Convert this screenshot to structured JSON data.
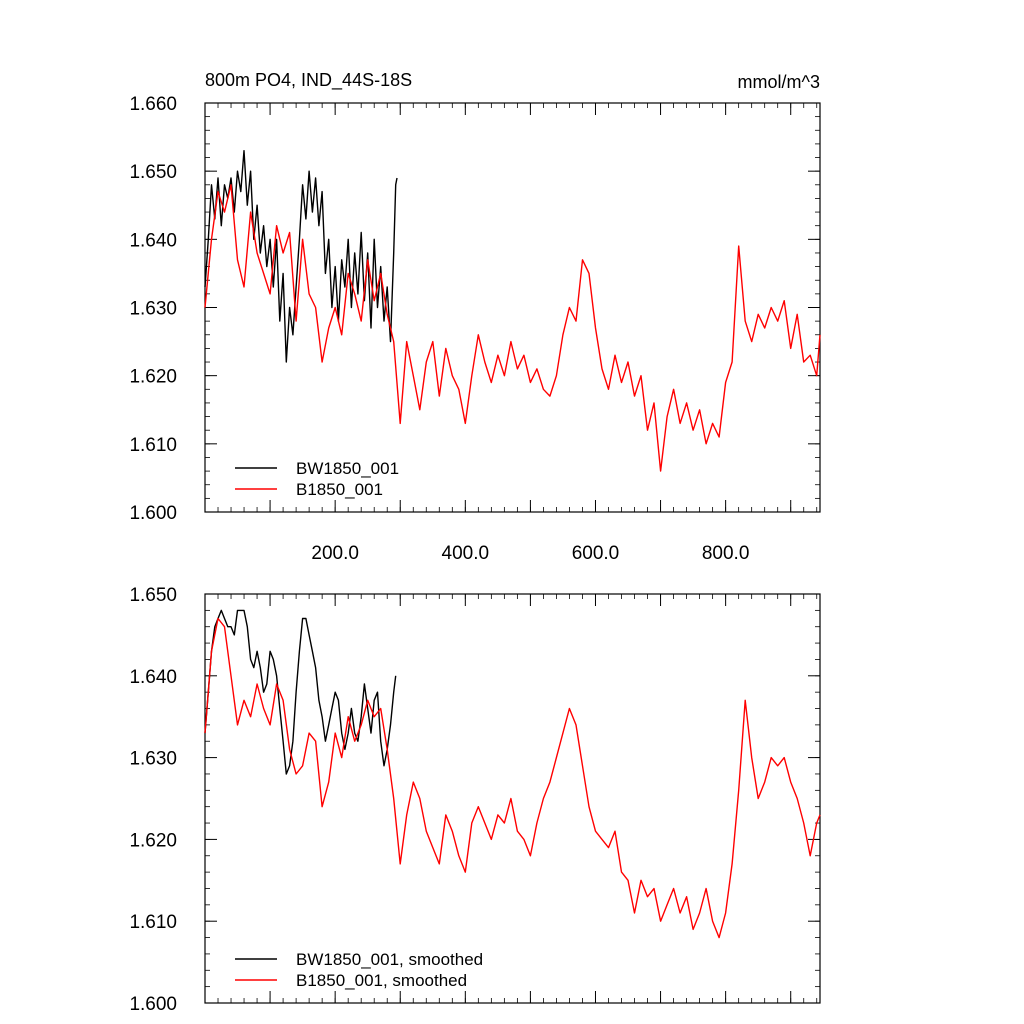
{
  "chart_data": [
    {
      "type": "line",
      "title": "800m PO4, IND_44S-18S",
      "units": "mmol/m^3",
      "xlim": [
        0,
        945
      ],
      "ylim": [
        1.6,
        1.66
      ],
      "y_ticks": [
        "1.600",
        "1.610",
        "1.620",
        "1.630",
        "1.640",
        "1.650",
        "1.660"
      ],
      "x_ticks": [
        "200.0",
        "400.0",
        "600.0",
        "800.0"
      ],
      "legend_position": "bottom-left",
      "series": [
        {
          "name": "BW1850_001",
          "color": "#000000",
          "x": [
            0,
            5,
            10,
            15,
            20,
            25,
            30,
            35,
            40,
            45,
            50,
            55,
            60,
            65,
            70,
            75,
            80,
            85,
            90,
            95,
            100,
            105,
            110,
            115,
            120,
            125,
            130,
            135,
            140,
            145,
            150,
            155,
            160,
            165,
            170,
            175,
            180,
            185,
            190,
            195,
            200,
            205,
            210,
            215,
            220,
            225,
            230,
            235,
            240,
            245,
            250,
            255,
            260,
            265,
            270,
            275,
            280,
            285,
            290,
            293,
            295
          ],
          "values": [
            1.633,
            1.64,
            1.648,
            1.643,
            1.649,
            1.642,
            1.648,
            1.646,
            1.649,
            1.644,
            1.65,
            1.647,
            1.653,
            1.645,
            1.65,
            1.64,
            1.645,
            1.638,
            1.642,
            1.636,
            1.64,
            1.633,
            1.64,
            1.628,
            1.635,
            1.622,
            1.63,
            1.626,
            1.633,
            1.64,
            1.648,
            1.643,
            1.65,
            1.644,
            1.649,
            1.642,
            1.647,
            1.635,
            1.64,
            1.63,
            1.636,
            1.628,
            1.637,
            1.633,
            1.64,
            1.63,
            1.638,
            1.632,
            1.641,
            1.631,
            1.638,
            1.627,
            1.64,
            1.63,
            1.636,
            1.628,
            1.633,
            1.625,
            1.638,
            1.648,
            1.649
          ]
        },
        {
          "name": "B1850_001",
          "color": "#ff0000",
          "x": [
            0,
            10,
            20,
            30,
            40,
            50,
            60,
            70,
            80,
            90,
            100,
            110,
            120,
            130,
            140,
            150,
            160,
            170,
            180,
            190,
            200,
            210,
            220,
            230,
            240,
            250,
            260,
            270,
            280,
            290,
            300,
            310,
            320,
            330,
            340,
            350,
            360,
            370,
            380,
            390,
            400,
            410,
            420,
            430,
            440,
            450,
            460,
            470,
            480,
            490,
            500,
            510,
            520,
            530,
            540,
            550,
            560,
            570,
            580,
            590,
            600,
            610,
            620,
            630,
            640,
            650,
            660,
            670,
            680,
            690,
            700,
            710,
            720,
            730,
            740,
            750,
            760,
            770,
            780,
            790,
            800,
            810,
            820,
            830,
            840,
            850,
            860,
            870,
            880,
            890,
            900,
            910,
            920,
            930,
            940,
            945
          ],
          "values": [
            1.63,
            1.64,
            1.647,
            1.644,
            1.648,
            1.637,
            1.633,
            1.644,
            1.638,
            1.635,
            1.632,
            1.642,
            1.638,
            1.641,
            1.628,
            1.64,
            1.632,
            1.63,
            1.622,
            1.627,
            1.63,
            1.626,
            1.635,
            1.632,
            1.628,
            1.637,
            1.631,
            1.635,
            1.629,
            1.625,
            1.613,
            1.625,
            1.62,
            1.615,
            1.622,
            1.625,
            1.617,
            1.624,
            1.62,
            1.618,
            1.613,
            1.62,
            1.626,
            1.622,
            1.619,
            1.623,
            1.62,
            1.625,
            1.621,
            1.623,
            1.619,
            1.621,
            1.618,
            1.617,
            1.62,
            1.626,
            1.63,
            1.628,
            1.637,
            1.635,
            1.627,
            1.621,
            1.618,
            1.623,
            1.619,
            1.622,
            1.617,
            1.62,
            1.612,
            1.616,
            1.606,
            1.614,
            1.618,
            1.613,
            1.616,
            1.612,
            1.615,
            1.61,
            1.613,
            1.611,
            1.619,
            1.622,
            1.639,
            1.628,
            1.625,
            1.629,
            1.627,
            1.63,
            1.628,
            1.631,
            1.624,
            1.629,
            1.622,
            1.623,
            1.62,
            1.626
          ]
        }
      ]
    },
    {
      "type": "line",
      "xlim": [
        0,
        945
      ],
      "ylim": [
        1.6,
        1.65
      ],
      "y_ticks": [
        "1.600",
        "1.610",
        "1.620",
        "1.630",
        "1.640",
        "1.650"
      ],
      "legend_position": "bottom-left",
      "series": [
        {
          "name": "BW1850_001, smoothed",
          "color": "#000000",
          "x": [
            0,
            5,
            10,
            15,
            20,
            25,
            30,
            35,
            40,
            45,
            50,
            55,
            60,
            65,
            70,
            75,
            80,
            85,
            90,
            95,
            100,
            105,
            110,
            115,
            120,
            125,
            130,
            135,
            140,
            145,
            150,
            155,
            160,
            165,
            170,
            175,
            180,
            185,
            190,
            195,
            200,
            205,
            210,
            215,
            220,
            225,
            230,
            235,
            240,
            245,
            250,
            255,
            260,
            265,
            270,
            275,
            280,
            285,
            290,
            293
          ],
          "values": [
            1.633,
            1.638,
            1.643,
            1.646,
            1.647,
            1.648,
            1.647,
            1.646,
            1.646,
            1.645,
            1.648,
            1.648,
            1.648,
            1.646,
            1.642,
            1.641,
            1.643,
            1.641,
            1.638,
            1.639,
            1.643,
            1.642,
            1.64,
            1.636,
            1.632,
            1.628,
            1.629,
            1.632,
            1.638,
            1.643,
            1.647,
            1.647,
            1.645,
            1.643,
            1.641,
            1.637,
            1.635,
            1.632,
            1.634,
            1.636,
            1.638,
            1.637,
            1.633,
            1.631,
            1.633,
            1.636,
            1.633,
            1.632,
            1.635,
            1.639,
            1.636,
            1.633,
            1.637,
            1.638,
            1.632,
            1.629,
            1.631,
            1.634,
            1.638,
            1.64
          ]
        },
        {
          "name": "B1850_001, smoothed",
          "color": "#ff0000",
          "x": [
            0,
            10,
            20,
            30,
            40,
            50,
            60,
            70,
            80,
            90,
            100,
            110,
            120,
            130,
            140,
            150,
            160,
            170,
            180,
            190,
            200,
            210,
            220,
            230,
            240,
            250,
            260,
            270,
            280,
            290,
            300,
            310,
            320,
            330,
            340,
            350,
            360,
            370,
            380,
            390,
            400,
            410,
            420,
            430,
            440,
            450,
            460,
            470,
            480,
            490,
            500,
            510,
            520,
            530,
            540,
            550,
            560,
            570,
            580,
            590,
            600,
            610,
            620,
            630,
            640,
            650,
            660,
            670,
            680,
            690,
            700,
            710,
            720,
            730,
            740,
            750,
            760,
            770,
            780,
            790,
            800,
            810,
            820,
            830,
            840,
            850,
            860,
            870,
            880,
            890,
            900,
            910,
            920,
            930,
            940,
            945
          ],
          "values": [
            1.633,
            1.643,
            1.647,
            1.646,
            1.64,
            1.634,
            1.637,
            1.635,
            1.639,
            1.636,
            1.634,
            1.639,
            1.637,
            1.631,
            1.628,
            1.629,
            1.633,
            1.632,
            1.624,
            1.627,
            1.633,
            1.63,
            1.635,
            1.632,
            1.634,
            1.637,
            1.635,
            1.636,
            1.631,
            1.625,
            1.617,
            1.623,
            1.627,
            1.625,
            1.621,
            1.619,
            1.617,
            1.623,
            1.621,
            1.618,
            1.616,
            1.622,
            1.624,
            1.622,
            1.62,
            1.623,
            1.622,
            1.625,
            1.621,
            1.62,
            1.618,
            1.622,
            1.625,
            1.627,
            1.63,
            1.633,
            1.636,
            1.634,
            1.629,
            1.624,
            1.621,
            1.62,
            1.619,
            1.621,
            1.616,
            1.615,
            1.611,
            1.615,
            1.613,
            1.614,
            1.61,
            1.612,
            1.614,
            1.611,
            1.613,
            1.609,
            1.611,
            1.614,
            1.61,
            1.608,
            1.611,
            1.617,
            1.626,
            1.637,
            1.63,
            1.625,
            1.627,
            1.63,
            1.629,
            1.63,
            1.627,
            1.625,
            1.622,
            1.618,
            1.622,
            1.623
          ]
        }
      ]
    }
  ]
}
